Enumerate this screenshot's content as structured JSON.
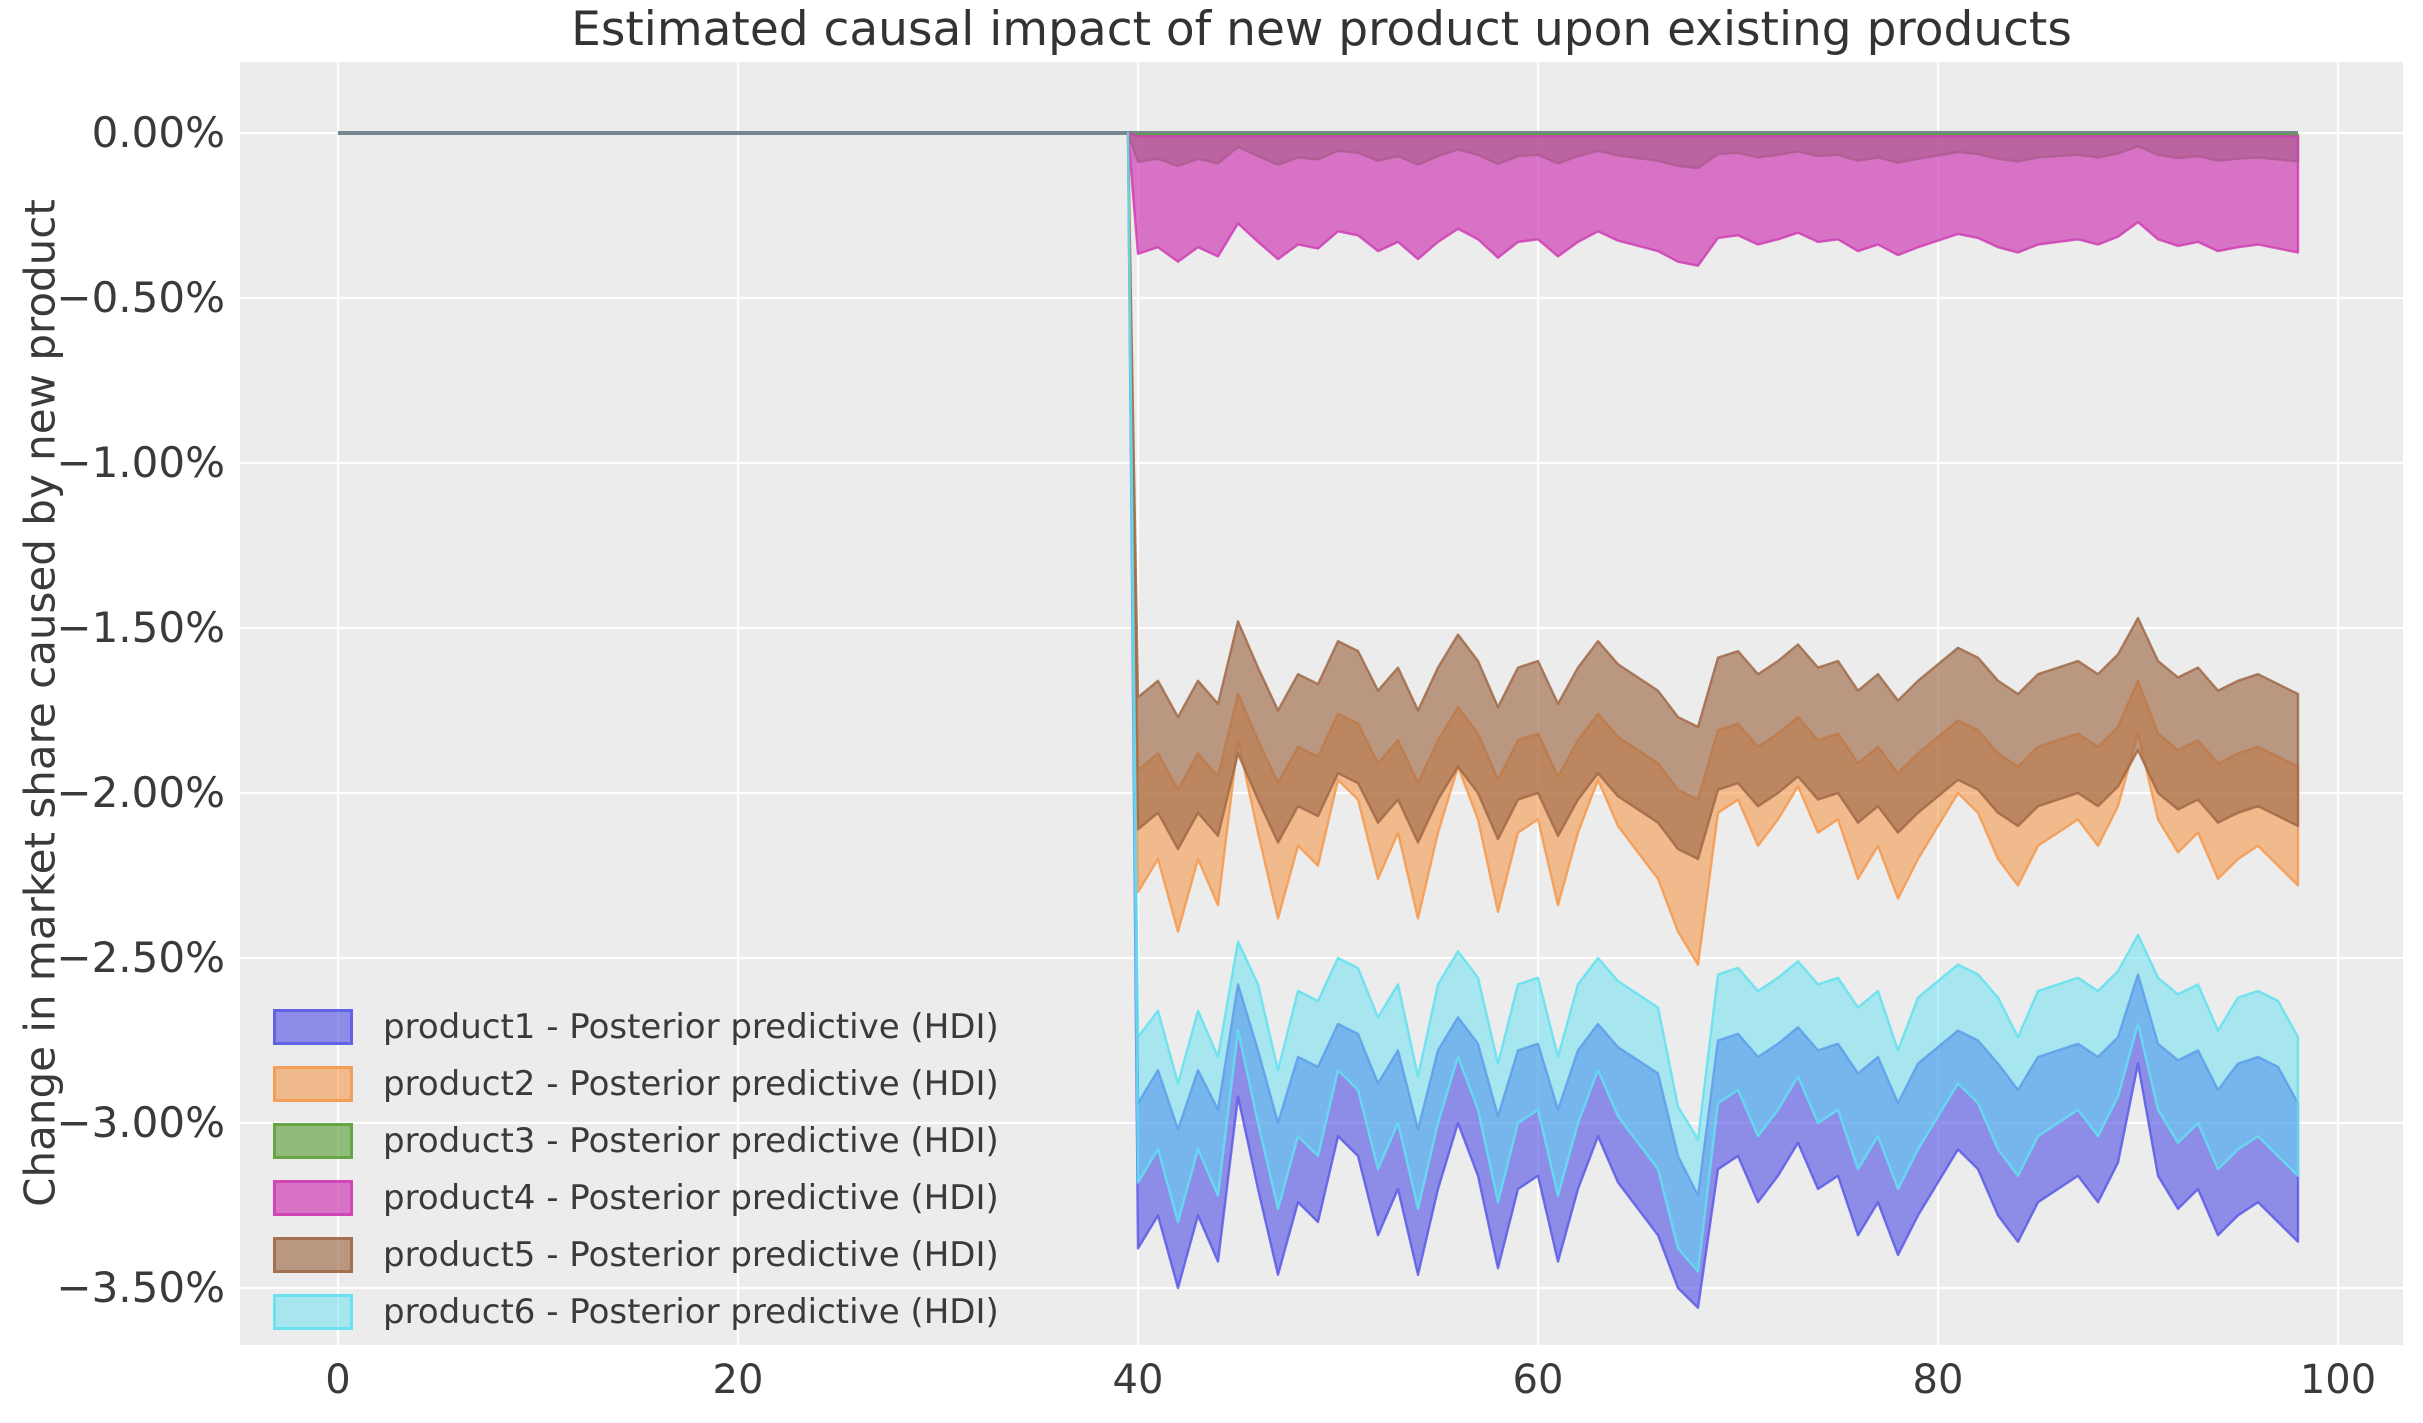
{
  "figure": {
    "title": "Estimated causal impact of new product upon existing products",
    "y_axis_label": "Change in market share caused by new product",
    "background_color": "#ffffff",
    "plot_background_color": "#ececec",
    "grid_color": "#ffffff",
    "text_color": "#3a3a3a",
    "zero_line_color": "#76878f"
  },
  "chart_data": {
    "type": "area",
    "title": "Estimated causal impact of new product upon existing products",
    "xlabel": "",
    "ylabel": "Change in market share caused by new product",
    "xlim": [
      -5,
      103.3
    ],
    "ylim": [
      -3.74,
      0.22
    ],
    "grid": true,
    "treatment_time": 40,
    "x_tick_values": [
      0,
      20,
      40,
      60,
      80,
      100
    ],
    "x_tick_labels": [
      "0",
      "20",
      "40",
      "60",
      "80",
      "100"
    ],
    "y_tick_values": [
      0,
      -0.5,
      -1.0,
      -1.5,
      -2.0,
      -2.5,
      -3.0,
      -3.5
    ],
    "y_tick_labels": [
      "0.00%",
      "−0.50%",
      "−1.00%",
      "−1.50%",
      "−2.00%",
      "−2.50%",
      "−3.00%",
      "−3.50%"
    ],
    "pre_period": {
      "x_start": 0,
      "x_end": 39.5,
      "value": 0,
      "line_color": "#76878f"
    },
    "x_post": [
      39.5,
      40,
      41,
      42,
      43,
      44,
      45,
      46,
      47,
      48,
      49,
      50,
      51,
      52,
      53,
      54,
      55,
      56,
      57,
      58,
      59,
      60,
      61,
      62,
      63,
      64,
      65,
      66,
      67,
      68,
      69,
      70,
      71,
      72,
      73,
      74,
      75,
      76,
      77,
      78,
      79,
      80,
      81,
      82,
      83,
      84,
      85,
      86,
      87,
      88,
      89,
      90,
      91,
      92,
      93,
      94,
      95,
      96,
      97,
      98
    ],
    "legend_location": "lower left",
    "series": [
      {
        "name": "product1 - Posterior predictive (HDI)",
        "product": "product1",
        "color": "#5a5ae6",
        "fill_alpha": 0.65,
        "hdi_upper": [
          0,
          -2.94,
          -2.84,
          -3.02,
          -2.84,
          -2.96,
          -2.58,
          -2.78,
          -3.0,
          -2.8,
          -2.83,
          -2.7,
          -2.73,
          -2.88,
          -2.78,
          -3.02,
          -2.78,
          -2.68,
          -2.76,
          -2.98,
          -2.78,
          -2.76,
          -2.96,
          -2.78,
          -2.7,
          -2.77,
          -2.81,
          -2.85,
          -3.1,
          -3.22,
          -2.75,
          -2.73,
          -2.8,
          -2.76,
          -2.71,
          -2.78,
          -2.76,
          -2.85,
          -2.8,
          -2.94,
          -2.82,
          -2.77,
          -2.72,
          -2.75,
          -2.82,
          -2.9,
          -2.8,
          -2.78,
          -2.76,
          -2.8,
          -2.74,
          -2.55,
          -2.76,
          -2.81,
          -2.78,
          -2.9,
          -2.82,
          -2.8,
          -2.83,
          -2.94
        ],
        "hdi_lower": [
          0,
          -3.38,
          -3.28,
          -3.5,
          -3.28,
          -3.42,
          -2.92,
          -3.2,
          -3.46,
          -3.24,
          -3.3,
          -3.04,
          -3.1,
          -3.34,
          -3.2,
          -3.46,
          -3.2,
          -3.0,
          -3.16,
          -3.44,
          -3.2,
          -3.16,
          -3.42,
          -3.2,
          -3.04,
          -3.18,
          -3.26,
          -3.34,
          -3.5,
          -3.56,
          -3.14,
          -3.1,
          -3.24,
          -3.16,
          -3.06,
          -3.2,
          -3.16,
          -3.34,
          -3.24,
          -3.4,
          -3.28,
          -3.18,
          -3.08,
          -3.14,
          -3.28,
          -3.36,
          -3.24,
          -3.2,
          -3.16,
          -3.24,
          -3.12,
          -2.82,
          -3.16,
          -3.26,
          -3.2,
          -3.34,
          -3.28,
          -3.24,
          -3.3,
          -3.36
        ]
      },
      {
        "name": "product2 - Posterior predictive (HDI)",
        "product": "product2",
        "color": "#f5994e",
        "fill_alpha": 0.6,
        "hdi_upper": [
          0,
          -1.93,
          -1.88,
          -1.99,
          -1.88,
          -1.95,
          -1.7,
          -1.84,
          -1.97,
          -1.86,
          -1.89,
          -1.76,
          -1.79,
          -1.91,
          -1.84,
          -1.97,
          -1.84,
          -1.74,
          -1.82,
          -1.96,
          -1.84,
          -1.82,
          -1.95,
          -1.84,
          -1.76,
          -1.83,
          -1.87,
          -1.91,
          -1.99,
          -2.02,
          -1.81,
          -1.79,
          -1.86,
          -1.82,
          -1.77,
          -1.84,
          -1.82,
          -1.91,
          -1.86,
          -1.94,
          -1.88,
          -1.83,
          -1.78,
          -1.81,
          -1.88,
          -1.92,
          -1.86,
          -1.84,
          -1.82,
          -1.86,
          -1.8,
          -1.66,
          -1.82,
          -1.87,
          -1.84,
          -1.91,
          -1.88,
          -1.86,
          -1.89,
          -1.92
        ],
        "hdi_lower": [
          0,
          -2.3,
          -2.2,
          -2.42,
          -2.2,
          -2.34,
          -1.84,
          -2.12,
          -2.38,
          -2.16,
          -2.22,
          -1.96,
          -2.02,
          -2.26,
          -2.12,
          -2.38,
          -2.12,
          -1.92,
          -2.08,
          -2.36,
          -2.12,
          -2.08,
          -2.34,
          -2.12,
          -1.96,
          -2.1,
          -2.18,
          -2.26,
          -2.42,
          -2.52,
          -2.06,
          -2.02,
          -2.16,
          -2.08,
          -1.98,
          -2.12,
          -2.08,
          -2.26,
          -2.16,
          -2.32,
          -2.2,
          -2.1,
          -2.0,
          -2.06,
          -2.2,
          -2.28,
          -2.16,
          -2.12,
          -2.08,
          -2.16,
          -2.04,
          -1.82,
          -2.08,
          -2.18,
          -2.12,
          -2.26,
          -2.2,
          -2.16,
          -2.22,
          -2.28
        ]
      },
      {
        "name": "product3 - Posterior predictive (HDI)",
        "product": "product3",
        "color": "#60a13e",
        "fill_alpha": 0.65,
        "hdi_upper": [
          0,
          -0.005,
          -0.005,
          -0.005,
          -0.005,
          -0.005,
          -0.005,
          -0.005,
          -0.005,
          -0.005,
          -0.005,
          -0.005,
          -0.005,
          -0.005,
          -0.005,
          -0.005,
          -0.005,
          -0.005,
          -0.005,
          -0.005,
          -0.005,
          -0.005,
          -0.005,
          -0.005,
          -0.005,
          -0.005,
          -0.005,
          -0.005,
          -0.005,
          -0.005,
          -0.005,
          -0.005,
          -0.005,
          -0.005,
          -0.005,
          -0.005,
          -0.005,
          -0.005,
          -0.005,
          -0.005,
          -0.005,
          -0.005,
          -0.005,
          -0.005,
          -0.005,
          -0.005,
          -0.005,
          -0.005,
          -0.005,
          -0.005,
          -0.005,
          -0.005,
          -0.005,
          -0.005,
          -0.005,
          -0.005,
          -0.005,
          -0.005,
          -0.005,
          -0.005
        ],
        "hdi_lower": [
          0,
          -0.088,
          -0.078,
          -0.1,
          -0.078,
          -0.092,
          -0.042,
          -0.07,
          -0.096,
          -0.074,
          -0.08,
          -0.054,
          -0.06,
          -0.084,
          -0.07,
          -0.096,
          -0.07,
          -0.05,
          -0.066,
          -0.094,
          -0.07,
          -0.066,
          -0.092,
          -0.07,
          -0.054,
          -0.068,
          -0.076,
          -0.084,
          -0.1,
          -0.106,
          -0.064,
          -0.06,
          -0.074,
          -0.066,
          -0.056,
          -0.07,
          -0.066,
          -0.084,
          -0.074,
          -0.09,
          -0.078,
          -0.068,
          -0.058,
          -0.064,
          -0.078,
          -0.086,
          -0.074,
          -0.07,
          -0.066,
          -0.074,
          -0.062,
          -0.04,
          -0.066,
          -0.076,
          -0.07,
          -0.084,
          -0.078,
          -0.074,
          -0.08,
          -0.086
        ]
      },
      {
        "name": "product4 - Posterior predictive (HDI)",
        "product": "product4",
        "color": "#cf3eb4",
        "fill_alpha": 0.7,
        "hdi_upper": [
          0,
          -0.01,
          -0.01,
          -0.01,
          -0.01,
          -0.01,
          -0.01,
          -0.01,
          -0.01,
          -0.01,
          -0.01,
          -0.01,
          -0.01,
          -0.01,
          -0.01,
          -0.01,
          -0.01,
          -0.01,
          -0.01,
          -0.01,
          -0.01,
          -0.01,
          -0.01,
          -0.01,
          -0.01,
          -0.01,
          -0.01,
          -0.01,
          -0.01,
          -0.01,
          -0.01,
          -0.01,
          -0.01,
          -0.01,
          -0.01,
          -0.01,
          -0.01,
          -0.01,
          -0.01,
          -0.01,
          -0.01,
          -0.01,
          -0.01,
          -0.01,
          -0.01,
          -0.01,
          -0.01,
          -0.01,
          -0.01,
          -0.01,
          -0.01,
          -0.01,
          -0.01,
          -0.01,
          -0.01,
          -0.01,
          -0.01,
          -0.01,
          -0.01,
          -0.01
        ],
        "hdi_lower": [
          0,
          -0.366,
          -0.346,
          -0.39,
          -0.346,
          -0.374,
          -0.274,
          -0.33,
          -0.382,
          -0.338,
          -0.35,
          -0.298,
          -0.31,
          -0.358,
          -0.33,
          -0.382,
          -0.33,
          -0.29,
          -0.322,
          -0.378,
          -0.33,
          -0.322,
          -0.374,
          -0.33,
          -0.298,
          -0.326,
          -0.342,
          -0.358,
          -0.39,
          -0.402,
          -0.318,
          -0.31,
          -0.338,
          -0.322,
          -0.302,
          -0.33,
          -0.322,
          -0.358,
          -0.338,
          -0.37,
          -0.346,
          -0.326,
          -0.306,
          -0.318,
          -0.346,
          -0.362,
          -0.338,
          -0.33,
          -0.322,
          -0.338,
          -0.314,
          -0.27,
          -0.322,
          -0.342,
          -0.33,
          -0.358,
          -0.346,
          -0.338,
          -0.35,
          -0.362
        ]
      },
      {
        "name": "product5 - Posterior predictive (HDI)",
        "product": "product5",
        "color": "#a06a48",
        "fill_alpha": 0.65,
        "hdi_upper": [
          0,
          -1.71,
          -1.66,
          -1.77,
          -1.66,
          -1.73,
          -1.48,
          -1.62,
          -1.75,
          -1.64,
          -1.67,
          -1.54,
          -1.57,
          -1.69,
          -1.62,
          -1.75,
          -1.62,
          -1.52,
          -1.6,
          -1.74,
          -1.62,
          -1.6,
          -1.73,
          -1.62,
          -1.54,
          -1.61,
          -1.65,
          -1.69,
          -1.77,
          -1.8,
          -1.59,
          -1.57,
          -1.64,
          -1.6,
          -1.55,
          -1.62,
          -1.6,
          -1.69,
          -1.64,
          -1.72,
          -1.66,
          -1.61,
          -1.56,
          -1.59,
          -1.66,
          -1.7,
          -1.64,
          -1.62,
          -1.6,
          -1.64,
          -1.58,
          -1.47,
          -1.6,
          -1.65,
          -1.62,
          -1.69,
          -1.66,
          -1.64,
          -1.67,
          -1.7
        ],
        "hdi_lower": [
          0,
          -2.11,
          -2.06,
          -2.17,
          -2.06,
          -2.13,
          -1.88,
          -2.02,
          -2.15,
          -2.04,
          -2.07,
          -1.94,
          -1.97,
          -2.09,
          -2.02,
          -2.15,
          -2.02,
          -1.92,
          -2.0,
          -2.14,
          -2.02,
          -2.0,
          -2.13,
          -2.02,
          -1.94,
          -2.01,
          -2.05,
          -2.09,
          -2.17,
          -2.2,
          -1.99,
          -1.97,
          -2.04,
          -2.0,
          -1.95,
          -2.02,
          -2.0,
          -2.09,
          -2.04,
          -2.12,
          -2.06,
          -2.01,
          -1.96,
          -1.99,
          -2.06,
          -2.1,
          -2.04,
          -2.02,
          -2.0,
          -2.04,
          -1.98,
          -1.87,
          -2.0,
          -2.05,
          -2.02,
          -2.09,
          -2.06,
          -2.04,
          -2.07,
          -2.1
        ]
      },
      {
        "name": "product6 - Posterior predictive (HDI)",
        "product": "product6",
        "color": "#62e0f0",
        "fill_alpha": 0.5,
        "hdi_upper": [
          0,
          -2.74,
          -2.66,
          -2.88,
          -2.66,
          -2.8,
          -2.45,
          -2.58,
          -2.84,
          -2.6,
          -2.63,
          -2.5,
          -2.53,
          -2.68,
          -2.58,
          -2.86,
          -2.58,
          -2.48,
          -2.56,
          -2.82,
          -2.58,
          -2.56,
          -2.8,
          -2.58,
          -2.5,
          -2.57,
          -2.61,
          -2.65,
          -2.95,
          -3.05,
          -2.55,
          -2.53,
          -2.6,
          -2.56,
          -2.51,
          -2.58,
          -2.56,
          -2.65,
          -2.6,
          -2.78,
          -2.62,
          -2.57,
          -2.52,
          -2.55,
          -2.62,
          -2.74,
          -2.6,
          -2.58,
          -2.56,
          -2.6,
          -2.54,
          -2.43,
          -2.56,
          -2.61,
          -2.58,
          -2.72,
          -2.62,
          -2.6,
          -2.63,
          -2.74
        ],
        "hdi_lower": [
          0,
          -3.18,
          -3.08,
          -3.3,
          -3.08,
          -3.22,
          -2.72,
          -3.0,
          -3.26,
          -3.04,
          -3.1,
          -2.84,
          -2.9,
          -3.14,
          -3.0,
          -3.26,
          -3.0,
          -2.8,
          -2.96,
          -3.24,
          -3.0,
          -2.96,
          -3.22,
          -3.0,
          -2.84,
          -2.98,
          -3.06,
          -3.14,
          -3.38,
          -3.45,
          -2.94,
          -2.9,
          -3.04,
          -2.96,
          -2.86,
          -3.0,
          -2.96,
          -3.14,
          -3.04,
          -3.2,
          -3.08,
          -2.98,
          -2.88,
          -2.94,
          -3.08,
          -3.16,
          -3.04,
          -3.0,
          -2.96,
          -3.04,
          -2.92,
          -2.7,
          -2.96,
          -3.06,
          -3.0,
          -3.14,
          -3.08,
          -3.04,
          -3.1,
          -3.16
        ]
      }
    ]
  }
}
